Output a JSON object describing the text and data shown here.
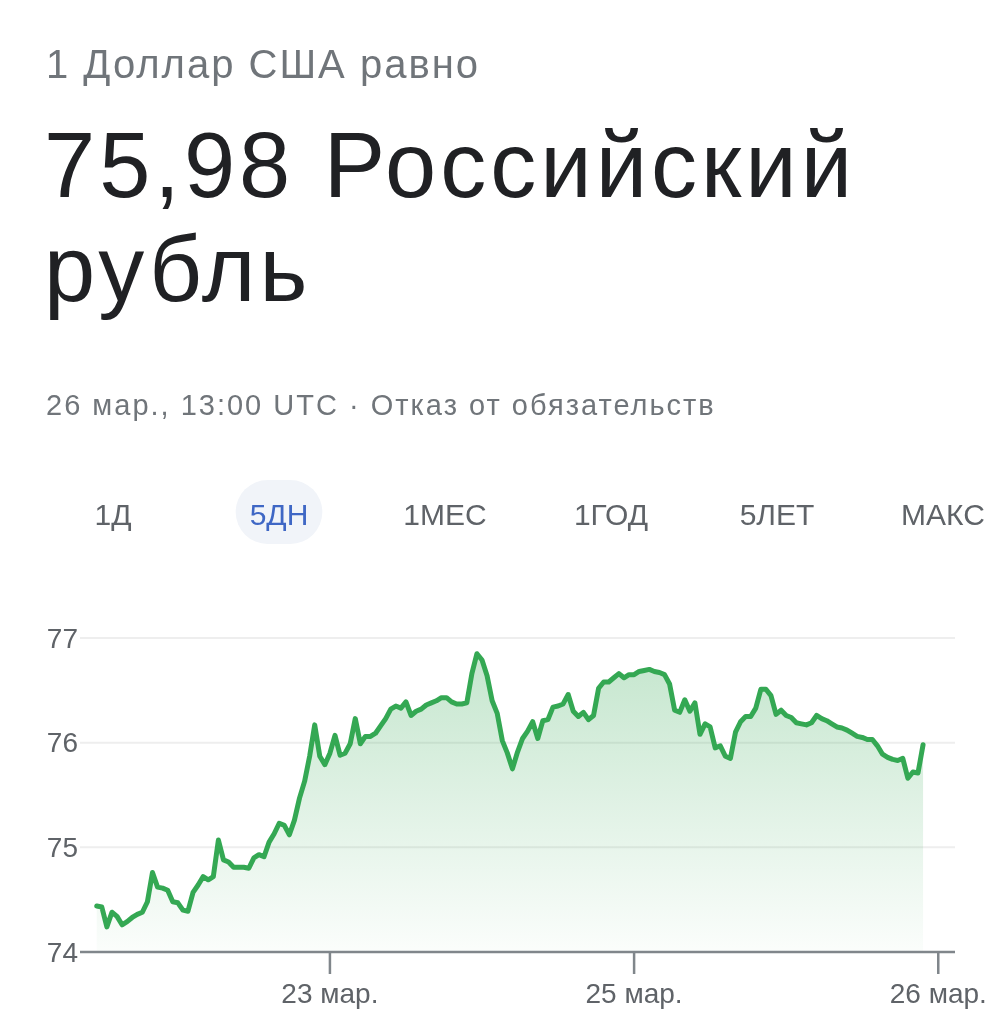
{
  "chart_data": {
    "type": "area",
    "title": "75,98 Российский рубль",
    "subtitle": "1 Доллар США равно",
    "annotations": [
      "26 мар., 13:00 UTC · Отказ от обязательств",
      "1Д",
      "5ДН",
      "1МЕС",
      "1ГОД",
      "5ЛЕТ",
      "МАКС"
    ],
    "categories": [
      null,
      null,
      null,
      null,
      null,
      null,
      null,
      null,
      null,
      null,
      null,
      null,
      null,
      null,
      null,
      null,
      null,
      null,
      null,
      null,
      null,
      null,
      null,
      null,
      null,
      null,
      null,
      null,
      null,
      null,
      null,
      null,
      null,
      null,
      null,
      null,
      null,
      null,
      null,
      null,
      null,
      null,
      null,
      null,
      null,
      null,
      "23 мар.",
      null,
      null,
      null,
      null,
      null,
      null,
      null,
      null,
      null,
      null,
      null,
      null,
      null,
      null,
      null,
      null,
      null,
      null,
      null,
      null,
      null,
      null,
      null,
      null,
      null,
      null,
      null,
      null,
      null,
      null,
      null,
      null,
      null,
      null,
      null,
      null,
      null,
      null,
      null,
      null,
      null,
      null,
      null,
      null,
      null,
      null,
      null,
      null,
      null,
      null,
      null,
      null,
      null,
      null,
      null,
      null,
      null,
      null,
      null,
      "25 мар.",
      null,
      null,
      null,
      null,
      null,
      null,
      null,
      null,
      null,
      null,
      null,
      null,
      null,
      null,
      null,
      null,
      null,
      null,
      null,
      null,
      null,
      null,
      null,
      null,
      null,
      null,
      null,
      null,
      null,
      null,
      null,
      null,
      null,
      null,
      null,
      null,
      null,
      null,
      null,
      null,
      null,
      null,
      null,
      null,
      null,
      null,
      null,
      null,
      null,
      null,
      null,
      null,
      null,
      null,
      null,
      null,
      null,
      null,
      null,
      "26 мар."
    ],
    "values": [
      74.44,
      74.43,
      74.24,
      74.38,
      74.34,
      74.26,
      74.29,
      74.33,
      74.36,
      74.38,
      74.48,
      74.76,
      74.62,
      74.61,
      74.59,
      74.48,
      74.47,
      74.4,
      74.39,
      74.57,
      74.64,
      74.72,
      74.69,
      74.72,
      75.07,
      74.88,
      74.86,
      74.81,
      74.81,
      74.81,
      74.8,
      74.9,
      74.93,
      74.91,
      75.05,
      75.13,
      75.23,
      75.21,
      75.12,
      75.26,
      75.47,
      75.63,
      75.87,
      76.17,
      75.87,
      75.79,
      75.9,
      76.07,
      75.88,
      75.9,
      75.99,
      76.23,
      75.99,
      76.06,
      76.06,
      76.09,
      76.16,
      76.23,
      76.32,
      76.35,
      76.33,
      76.39,
      76.26,
      76.3,
      76.32,
      76.36,
      76.38,
      76.4,
      76.43,
      76.43,
      76.39,
      76.37,
      76.37,
      76.38,
      76.66,
      76.85,
      76.79,
      76.64,
      76.4,
      76.28,
      76.02,
      75.9,
      75.75,
      75.91,
      76.04,
      76.11,
      76.2,
      76.04,
      76.21,
      76.22,
      76.34,
      76.35,
      76.37,
      76.46,
      76.3,
      76.25,
      76.29,
      76.22,
      76.26,
      76.52,
      76.58,
      76.58,
      76.62,
      76.66,
      76.62,
      76.65,
      76.65,
      76.68,
      76.69,
      76.7,
      76.68,
      76.67,
      76.65,
      76.56,
      76.31,
      76.29,
      76.41,
      76.3,
      76.38,
      76.08,
      76.18,
      76.15,
      75.95,
      75.97,
      75.87,
      75.85,
      76.1,
      76.2,
      76.25,
      76.25,
      76.33,
      76.51,
      76.51,
      76.45,
      76.27,
      76.31,
      76.26,
      76.24,
      76.19,
      76.18,
      76.17,
      76.19,
      76.26,
      76.23,
      76.21,
      76.18,
      76.15,
      76.14,
      76.12,
      76.09,
      76.06,
      76.05,
      76.03,
      76.03,
      75.97,
      75.89,
      75.86,
      75.84,
      75.83,
      75.85,
      75.66,
      75.72,
      75.71,
      75.98,
      null,
      null,
      null
    ],
    "color": "#34a853",
    "ylim": [
      74,
      77
    ],
    "yticks": [
      74,
      75,
      76,
      77
    ],
    "grid": "y"
  }
}
